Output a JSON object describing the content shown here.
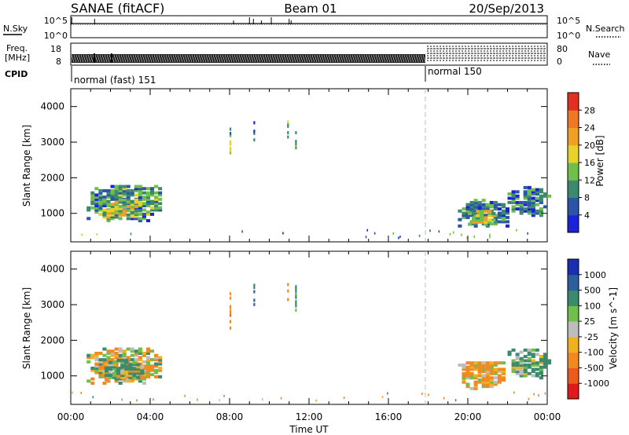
{
  "header": {
    "radar": "SANAE (fitACF)",
    "beam": "Beam 01",
    "date": "20/Sep/2013"
  },
  "noise_panel": {
    "left_label": "N.Sky",
    "right_label": "N.Search",
    "left_ticks": [
      "10^5",
      "10^0"
    ],
    "right_ticks": [
      "10^5",
      "10^0"
    ]
  },
  "freq_panel": {
    "left_label_1": "Freq.",
    "left_label_2": "[MHz]",
    "left_ticks": [
      "18",
      "8"
    ],
    "right_label": "Nave",
    "right_ticks": [
      "80",
      "0"
    ]
  },
  "cpid": {
    "label": "CPID",
    "segments": [
      {
        "name": "normal (fast) 151",
        "start_hour": 0,
        "end_hour": 18
      },
      {
        "name": "normal 150",
        "start_hour": 18,
        "end_hour": 24
      }
    ]
  },
  "colorbars": {
    "power": {
      "label": "Power [dB]",
      "ticks": [
        "4",
        "8",
        "12",
        "16",
        "20",
        "24",
        "28"
      ],
      "colors": [
        "#1a23d8",
        "#2a55a8",
        "#3b8a6e",
        "#6fbf4a",
        "#e8d12a",
        "#f0a024",
        "#f07822",
        "#e03020"
      ]
    },
    "velocity": {
      "label": "Velocity [m s^-1]",
      "ticks": [
        "1000",
        "500",
        "100",
        "25",
        "-25",
        "-100",
        "-500",
        "-1000"
      ],
      "colors": [
        "#1a2fb0",
        "#2d5fa0",
        "#3b8a6e",
        "#6fbf4a",
        "#bdbdbd",
        "#f0b020",
        "#f08a20",
        "#ee5a1e",
        "#e01a1a"
      ]
    }
  },
  "chart_data": [
    {
      "type": "heatmap",
      "panel": "power",
      "ylabel": "Slant Range [km]",
      "yticks": [
        "1000",
        "2000",
        "3000",
        "4000"
      ],
      "xticks": [
        "00:00",
        "04:00",
        "08:00",
        "12:00",
        "16:00",
        "20:00",
        "00:00"
      ],
      "xlim": [
        0,
        24
      ],
      "ylim": [
        200,
        4500
      ],
      "regions": [
        {
          "t0": 0.8,
          "t1": 4.6,
          "r0": 750,
          "r1": 1750,
          "value": 10
        },
        {
          "t0": 1.6,
          "t1": 3.5,
          "r0": 850,
          "r1": 1350,
          "value": 16
        },
        {
          "t0": 19.5,
          "t1": 22.0,
          "r0": 600,
          "r1": 1350,
          "value": 8
        },
        {
          "t0": 20.0,
          "t1": 21.3,
          "r0": 650,
          "r1": 1050,
          "value": 17
        },
        {
          "t0": 22.0,
          "t1": 24.0,
          "r0": 900,
          "r1": 1700,
          "value": 8
        }
      ],
      "streaks": [
        {
          "t": 8.0,
          "r0": 2300,
          "r1": 3350,
          "value": 12
        },
        {
          "t": 9.2,
          "r0": 2900,
          "r1": 3550,
          "value": 8
        },
        {
          "t": 10.9,
          "r0": 3100,
          "r1": 3550,
          "value": 14
        },
        {
          "t": 11.3,
          "r0": 2800,
          "r1": 3550,
          "value": 8
        }
      ]
    },
    {
      "type": "heatmap",
      "panel": "velocity",
      "ylabel": "Slant Range [km]",
      "yticks": [
        "1000",
        "2000",
        "3000",
        "4000"
      ],
      "xticks": [
        "00:00",
        "04:00",
        "08:00",
        "12:00",
        "16:00",
        "20:00",
        "00:00"
      ],
      "xlabel": "Time UT",
      "xlim": [
        0,
        24
      ],
      "ylim": [
        200,
        4500
      ],
      "regions": [
        {
          "t0": 0.8,
          "t1": 4.6,
          "r0": 750,
          "r1": 1750,
          "value": -60
        },
        {
          "t0": 1.5,
          "t1": 3.6,
          "r0": 850,
          "r1": 1400,
          "value": 120
        },
        {
          "t0": 19.5,
          "t1": 21.8,
          "r0": 600,
          "r1": 1350,
          "value": -150
        },
        {
          "t0": 22.0,
          "t1": 24.0,
          "r0": 900,
          "r1": 1700,
          "value": 200
        }
      ],
      "streaks": [
        {
          "t": 8.0,
          "r0": 2300,
          "r1": 3350,
          "value": -300
        },
        {
          "t": 9.2,
          "r0": 2900,
          "r1": 3550,
          "value": 600
        },
        {
          "t": 10.9,
          "r0": 3100,
          "r1": 3550,
          "value": -400
        },
        {
          "t": 11.3,
          "r0": 2800,
          "r1": 3550,
          "value": 300
        }
      ]
    }
  ]
}
